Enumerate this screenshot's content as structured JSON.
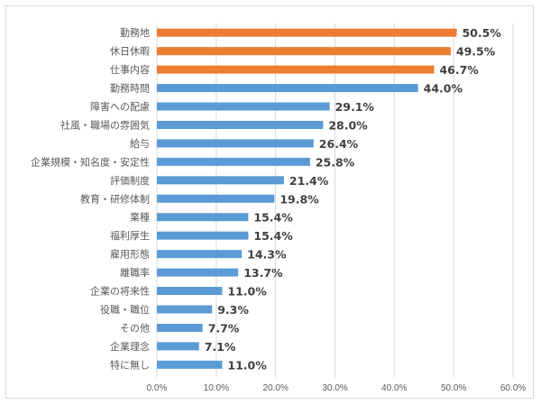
{
  "chart_data": {
    "type": "bar",
    "orientation": "horizontal",
    "categories": [
      "勤務地",
      "休日休暇",
      "仕事内容",
      "勤務時間",
      "障害への配慮",
      "社風・職場の雰囲気",
      "給与",
      "企業規模・知名度・安定性",
      "評価制度",
      "教育・研修体制",
      "業種",
      "福利厚生",
      "雇用形態",
      "離職率",
      "企業の将来性",
      "役職・職位",
      "その他",
      "企業理念",
      "特に無し"
    ],
    "values": [
      50.5,
      49.5,
      46.7,
      44.0,
      29.1,
      28.0,
      26.4,
      25.8,
      21.4,
      19.8,
      15.4,
      15.4,
      14.3,
      13.7,
      11.0,
      9.3,
      7.7,
      7.1,
      11.0
    ],
    "data_labels": [
      "50.5%",
      "49.5%",
      "46.7%",
      "44.0%",
      "29.1%",
      "28.0%",
      "26.4%",
      "25.8%",
      "21.4%",
      "19.8%",
      "15.4%",
      "15.4%",
      "14.3%",
      "13.7%",
      "11.0%",
      "9.3%",
      "7.7%",
      "7.1%",
      "11.0%"
    ],
    "highlighted": [
      true,
      true,
      true,
      false,
      false,
      false,
      false,
      false,
      false,
      false,
      false,
      false,
      false,
      false,
      false,
      false,
      false,
      false,
      false
    ],
    "xlim": [
      0,
      60
    ],
    "x_ticks": [
      "0.0%",
      "10.0%",
      "20.0%",
      "30.0%",
      "40.0%",
      "50.0%",
      "60.0%"
    ],
    "grid": "vertical",
    "colors": {
      "highlight": "#ED7D31",
      "default": "#5B9BD5",
      "grid": "#d9d9d9"
    },
    "title": "",
    "xlabel": "",
    "ylabel": ""
  }
}
